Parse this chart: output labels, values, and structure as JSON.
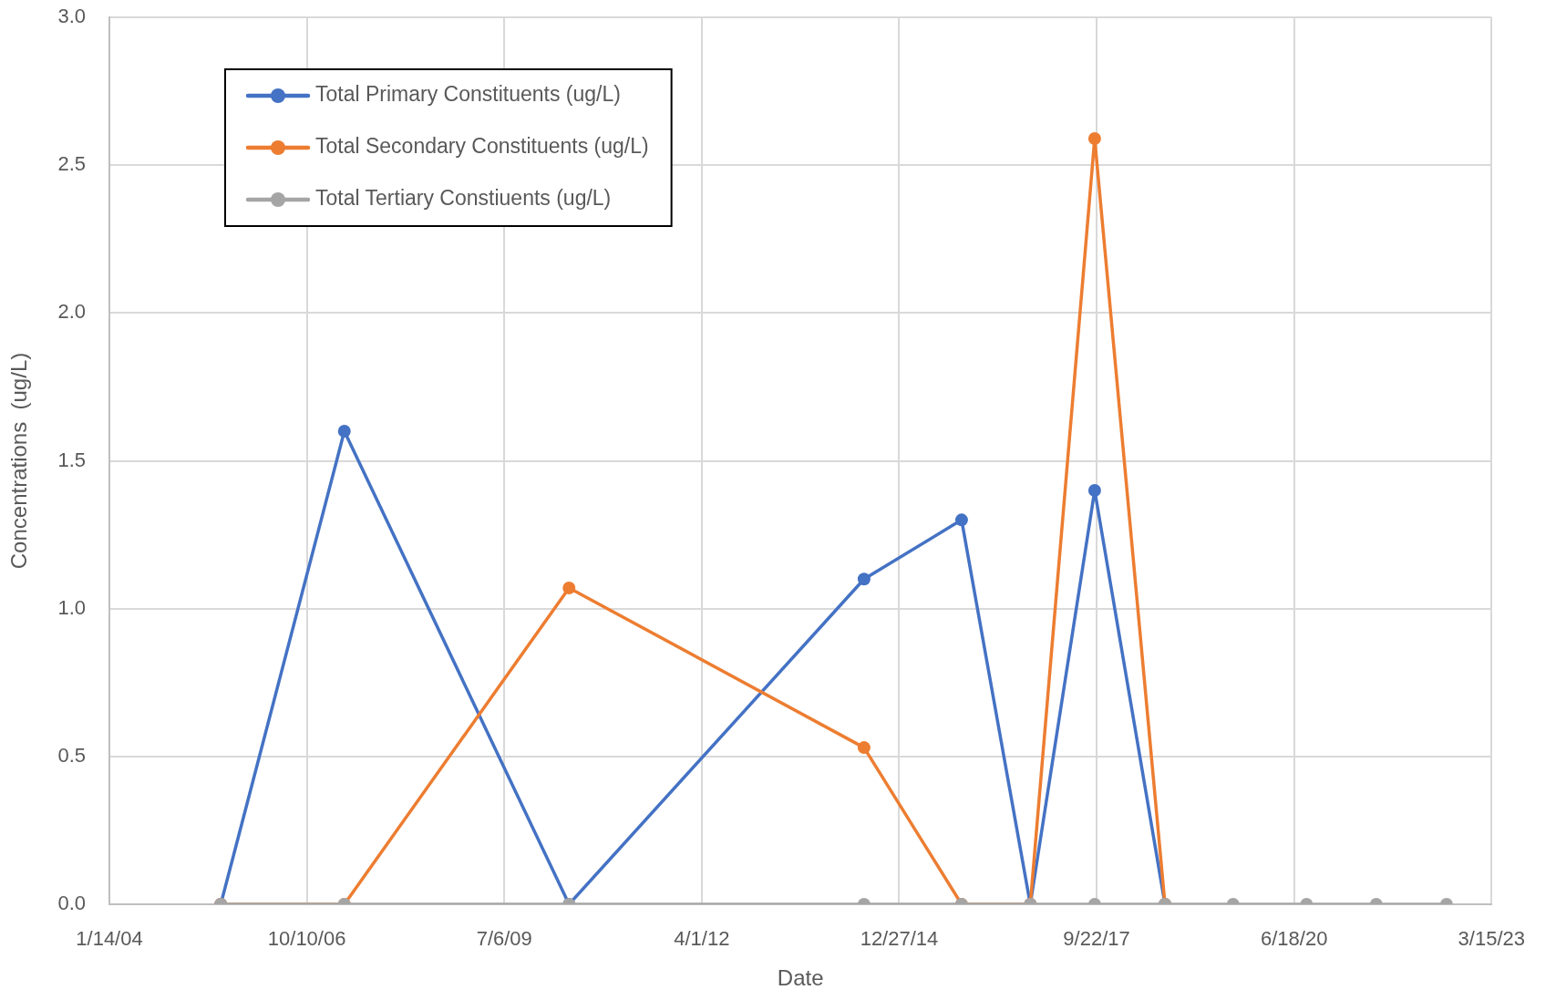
{
  "chart_data": {
    "type": "line",
    "xlabel": "Date",
    "ylabel": "Concentrations  (ug/L)",
    "x": [
      "2005-07-31",
      "2007-04-18",
      "2010-05-30",
      "2014-07-02",
      "2015-11-08",
      "2016-10-21",
      "2017-09-12",
      "2018-09-03",
      "2019-08-14",
      "2020-08-20",
      "2021-08-08",
      "2022-07-30"
    ],
    "series": [
      {
        "name": "Total Primary Constituents (ug/L)",
        "color": "#4472c4",
        "values": [
          0,
          1.6,
          0,
          1.1,
          1.3,
          0,
          1.4,
          0,
          null,
          null,
          null,
          null
        ]
      },
      {
        "name": "Total Secondary Constituents (ug/L)",
        "color": "#ed7d31",
        "values": [
          0,
          0,
          1.07,
          0.53,
          0,
          0,
          2.59,
          0,
          null,
          null,
          null,
          null
        ]
      },
      {
        "name": "Total Tertiary Constiuents (ug/L)",
        "color": "#a5a5a5",
        "values": [
          0,
          0,
          0,
          0,
          0,
          0,
          0,
          0,
          0,
          0,
          0,
          0
        ]
      }
    ],
    "xlim": [
      "2004-01-14",
      "2023-03-15"
    ],
    "xticks": [
      {
        "value": "2004-01-14",
        "label": "1/14/04"
      },
      {
        "value": "2006-10-10",
        "label": "10/10/06"
      },
      {
        "value": "2009-07-06",
        "label": "7/6/09"
      },
      {
        "value": "2012-04-01",
        "label": "4/1/12"
      },
      {
        "value": "2014-12-27",
        "label": "12/27/14"
      },
      {
        "value": "2017-09-22",
        "label": "9/22/17"
      },
      {
        "value": "2020-06-18",
        "label": "6/18/20"
      },
      {
        "value": "2023-03-15",
        "label": "3/15/23"
      }
    ],
    "ylim": [
      0,
      3
    ],
    "yticks": [
      {
        "value": 0,
        "label": "0.0"
      },
      0.5,
      {
        "value": 1,
        "label": "1.0"
      },
      1.5,
      {
        "value": 2,
        "label": "2.0"
      },
      2.5,
      {
        "value": 3,
        "label": "3.0"
      }
    ],
    "grid": true,
    "legend": "top left",
    "marker": "circle",
    "line_style": "solid"
  }
}
